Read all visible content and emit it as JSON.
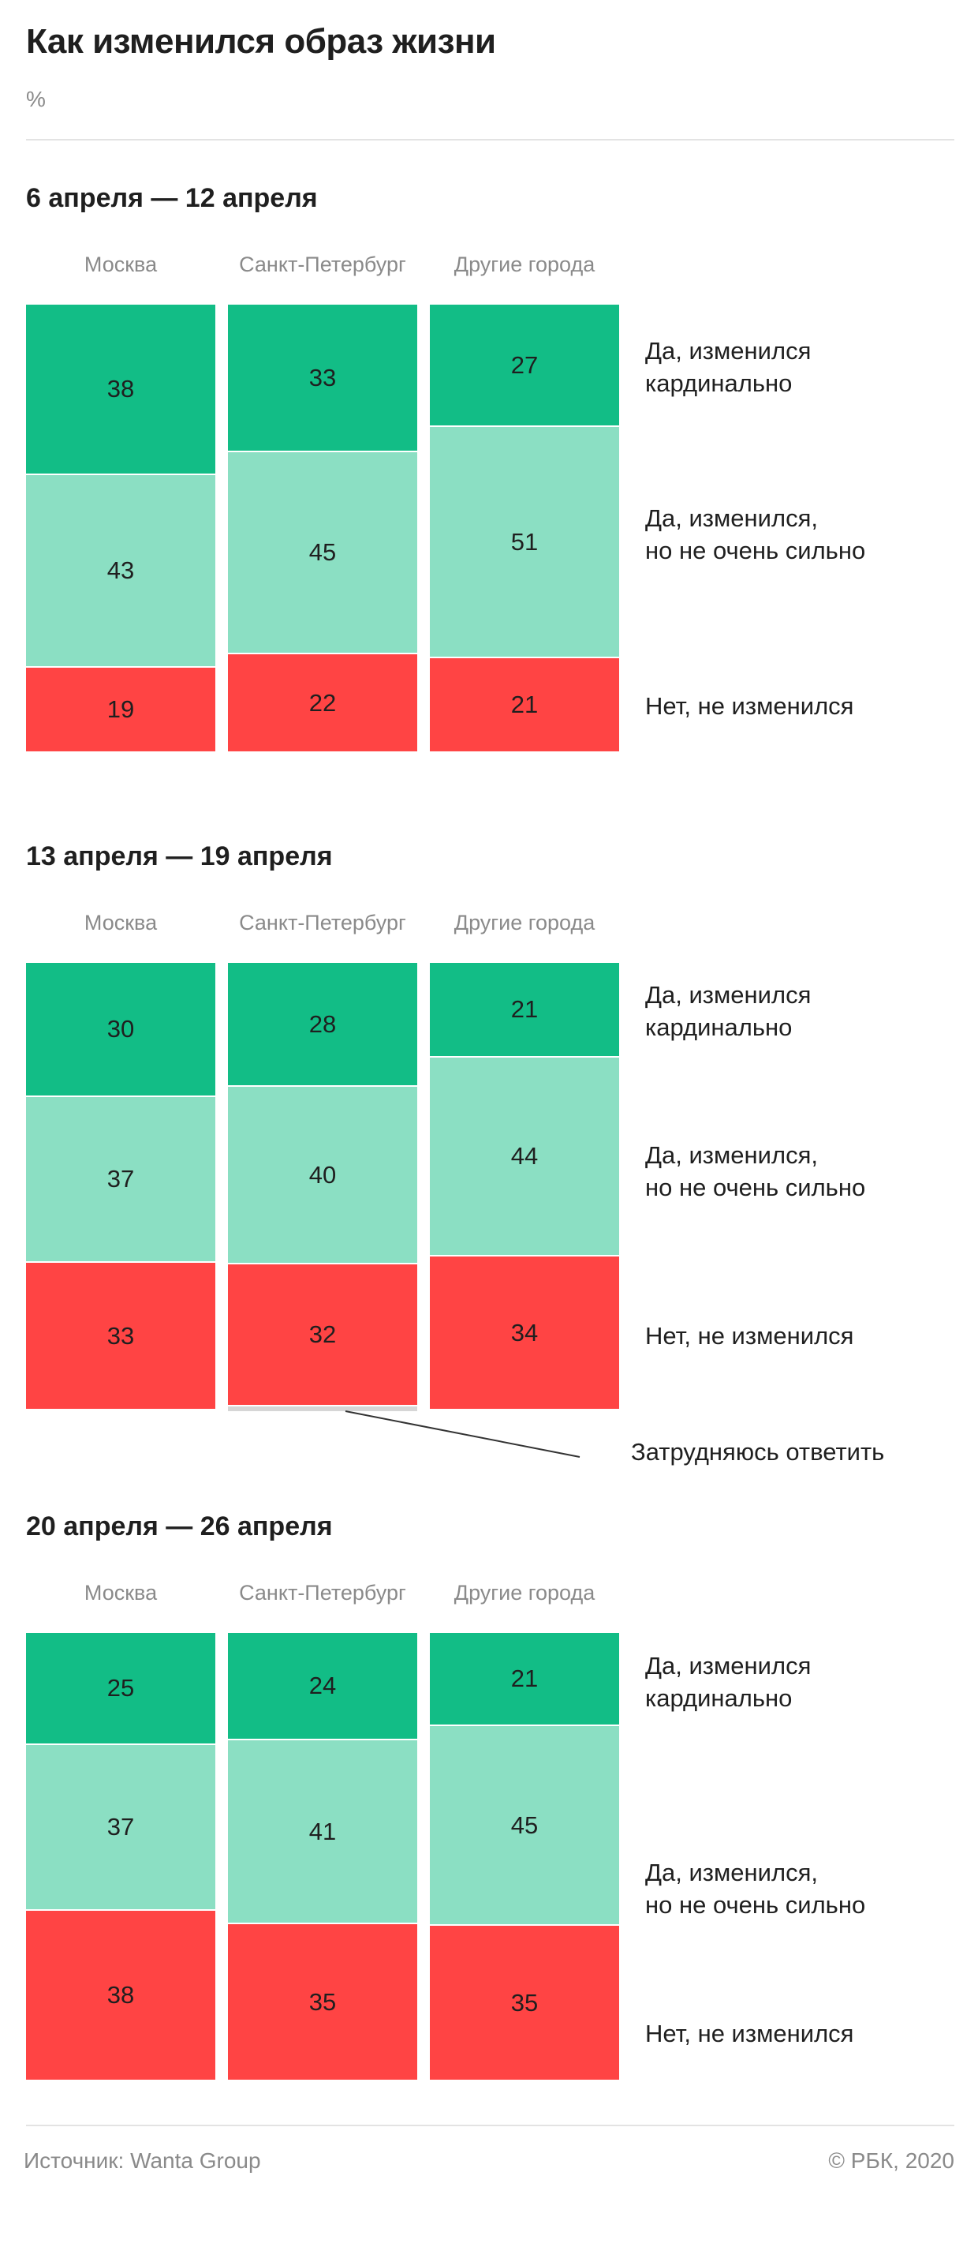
{
  "header": {
    "title": "Как изменился образ жизни",
    "unit": "%"
  },
  "colors": {
    "strong_change": "#12bd86",
    "mild_change": "#8bdfc3",
    "no_change": "#ff4444",
    "hard_to_answer": "#d6d6d6"
  },
  "chart_data": [
    {
      "type": "bar",
      "stacked": true,
      "title": "6 апреля — 12 апреля",
      "categories": [
        "Москва",
        "Санкт-Петербург",
        "Другие города"
      ],
      "series": [
        {
          "name": "Да, изменился кардинально",
          "legend_lines": [
            "Да, изменился",
            "кардинально"
          ],
          "values": [
            38,
            33,
            27
          ]
        },
        {
          "name": "Да, изменился, но не очень сильно",
          "legend_lines": [
            "Да, изменился,",
            "но не очень сильно"
          ],
          "values": [
            43,
            45,
            51
          ]
        },
        {
          "name": "Нет, не изменился",
          "legend_lines": [
            "Нет, не изменился"
          ],
          "values": [
            19,
            22,
            21
          ]
        }
      ]
    },
    {
      "type": "bar",
      "stacked": true,
      "title": "13 апреля — 19 апреля",
      "categories": [
        "Москва",
        "Санкт-Петербург",
        "Другие города"
      ],
      "series": [
        {
          "name": "Да, изменился кардинально",
          "legend_lines": [
            "Да, изменился",
            "кардинально"
          ],
          "values": [
            30,
            28,
            21
          ]
        },
        {
          "name": "Да, изменился, но не очень сильно",
          "legend_lines": [
            "Да, изменился,",
            "но не очень сильно"
          ],
          "values": [
            37,
            40,
            44
          ]
        },
        {
          "name": "Нет, не изменился",
          "legend_lines": [
            "Нет, не изменился"
          ],
          "values": [
            33,
            32,
            34
          ]
        },
        {
          "name": "Затрудняюсь ответить",
          "values": [
            0,
            1,
            0
          ]
        }
      ]
    },
    {
      "type": "bar",
      "stacked": true,
      "title": "20 апреля — 26 апреля",
      "categories": [
        "Москва",
        "Санкт-Петербург",
        "Другие города"
      ],
      "series": [
        {
          "name": "Да, изменился кардинально",
          "legend_lines": [
            "Да, изменился",
            "кардинально"
          ],
          "values": [
            25,
            24,
            21
          ]
        },
        {
          "name": "Да, изменился, но не очень сильно",
          "legend_lines": [
            "Да, изменился,",
            "но не очень сильно"
          ],
          "values": [
            37,
            41,
            45
          ]
        },
        {
          "name": "Нет, не изменился",
          "legend_lines": [
            "Нет, не изменился"
          ],
          "values": [
            38,
            35,
            35
          ]
        }
      ]
    }
  ],
  "footer": {
    "source": "Источник: Wanta Group",
    "copyright": "© РБК, 2020"
  }
}
